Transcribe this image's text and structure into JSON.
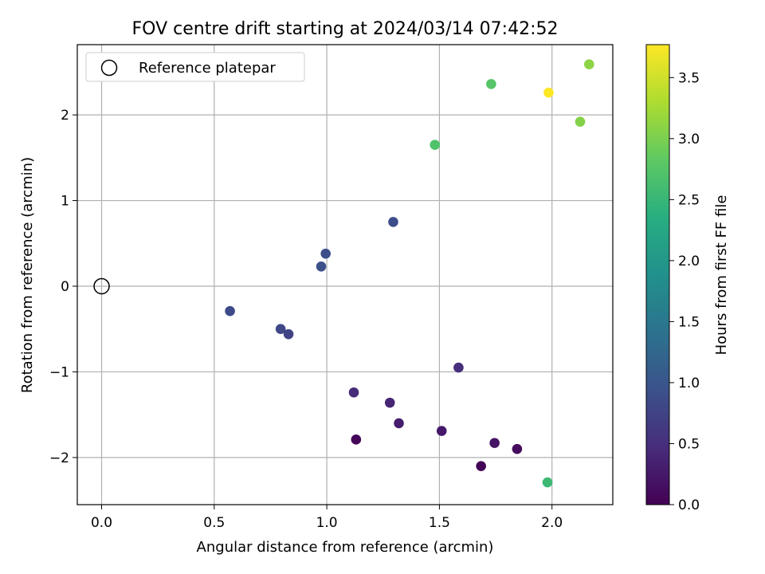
{
  "chart_data": {
    "type": "scatter",
    "title": "FOV centre drift starting at 2024/03/14 07:42:52",
    "xlabel": "Angular distance from reference (arcmin)",
    "ylabel": "Rotation from reference (arcmin)",
    "xlim": [
      -0.108,
      2.27
    ],
    "ylim": [
      -2.55,
      2.82
    ],
    "xticks": [
      0.0,
      0.5,
      1.0,
      1.5,
      2.0
    ],
    "xtick_labels": [
      "0.0",
      "0.5",
      "1.0",
      "1.5",
      "2.0"
    ],
    "yticks": [
      -2,
      -1,
      0,
      1,
      2
    ],
    "ytick_labels": [
      "−2",
      "−1",
      "0",
      "1",
      "2"
    ],
    "grid": true,
    "legend": {
      "position": "upper-left",
      "entries": [
        "Reference platepar"
      ]
    },
    "reference_point": {
      "x": 0.0,
      "y": 0.0
    },
    "colorbar": {
      "label": "Hours from first FF file",
      "colormap": "viridis",
      "range": [
        0.0,
        3.77
      ],
      "ticks": [
        0.0,
        0.5,
        1.0,
        1.5,
        2.0,
        2.5,
        3.0,
        3.5
      ],
      "tick_labels": [
        "0.0",
        "0.5",
        "1.0",
        "1.5",
        "2.0",
        "2.5",
        "3.0",
        "3.5"
      ]
    },
    "points": [
      {
        "x": 0.57,
        "y": -0.29,
        "hours": 0.85
      },
      {
        "x": 0.795,
        "y": -0.5,
        "hours": 0.8
      },
      {
        "x": 0.83,
        "y": -0.56,
        "hours": 0.75
      },
      {
        "x": 0.975,
        "y": 0.23,
        "hours": 0.92
      },
      {
        "x": 0.995,
        "y": 0.38,
        "hours": 0.9
      },
      {
        "x": 1.295,
        "y": 0.75,
        "hours": 0.88
      },
      {
        "x": 1.12,
        "y": -1.24,
        "hours": 0.45
      },
      {
        "x": 1.13,
        "y": -1.79,
        "hours": 0.05
      },
      {
        "x": 1.28,
        "y": -1.36,
        "hours": 0.4
      },
      {
        "x": 1.32,
        "y": -1.6,
        "hours": 0.3
      },
      {
        "x": 1.51,
        "y": -1.69,
        "hours": 0.25
      },
      {
        "x": 1.585,
        "y": -0.95,
        "hours": 0.5
      },
      {
        "x": 1.685,
        "y": -2.1,
        "hours": 0.02
      },
      {
        "x": 1.745,
        "y": -1.83,
        "hours": 0.2
      },
      {
        "x": 1.845,
        "y": -1.9,
        "hours": 0.12
      },
      {
        "x": 1.98,
        "y": -2.29,
        "hours": 2.55
      },
      {
        "x": 1.48,
        "y": 1.65,
        "hours": 2.7
      },
      {
        "x": 1.73,
        "y": 2.36,
        "hours": 2.75
      },
      {
        "x": 1.985,
        "y": 2.26,
        "hours": 3.77
      },
      {
        "x": 2.125,
        "y": 1.92,
        "hours": 3.05
      },
      {
        "x": 2.165,
        "y": 2.59,
        "hours": 3.1
      }
    ]
  }
}
